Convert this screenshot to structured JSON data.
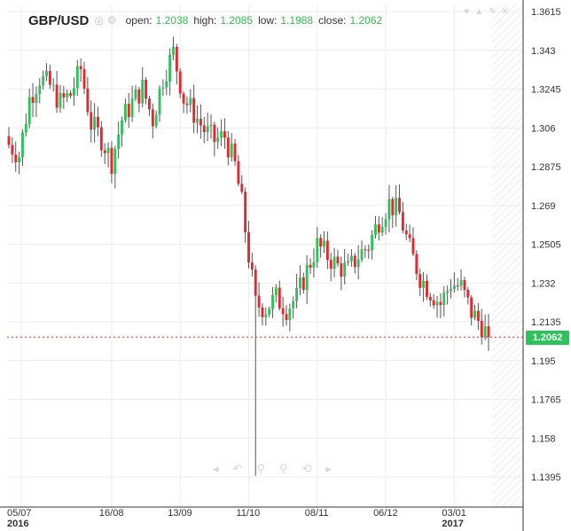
{
  "header": {
    "symbol": "GBP/USD",
    "open_label": "open:",
    "open_value": "1.2038",
    "high_label": "high:",
    "high_value": "1.2085",
    "low_label": "low:",
    "low_value": "1.1988",
    "close_label": "close:",
    "close_value": "1.2062",
    "icons": [
      "eye-icon",
      "settings-icon"
    ]
  },
  "toolbar_icons": [
    "heart-icon",
    "share-icon",
    "edit-icon",
    "close-icon"
  ],
  "nav_icons": [
    "arrow-left-icon",
    "undo-icon",
    "zoom-out-icon",
    "zoom-in-icon",
    "reset-icon",
    "arrow-right-icon"
  ],
  "colors": {
    "up": "#2ec35a",
    "down": "#e8262c",
    "grid": "#ececec",
    "last_line": "#e8262c",
    "last_badge": "#2ec35a"
  },
  "chart_data": {
    "type": "candlestick",
    "title": "GBP/USD",
    "xlabel": "",
    "ylabel": "",
    "ylim": [
      1.13,
      1.365
    ],
    "y_ticks": [
      "1.3615",
      "1.343",
      "1.3245",
      "1.306",
      "1.2875",
      "1.269",
      "1.2505",
      "1.232",
      "1.2135",
      "1.195",
      "1.1765",
      "1.158",
      "1.1395"
    ],
    "x_ticks": [
      {
        "label": "05/07",
        "sub": "2016",
        "index": 0
      },
      {
        "label": "16/08",
        "sub": "",
        "index": 30
      },
      {
        "label": "13/09",
        "sub": "",
        "index": 50
      },
      {
        "label": "11/10",
        "sub": "",
        "index": 70
      },
      {
        "label": "08/11",
        "sub": "",
        "index": 90
      },
      {
        "label": "06/12",
        "sub": "",
        "index": 110
      },
      {
        "label": "03/01",
        "sub": "2017",
        "index": 130
      }
    ],
    "last_close": "1.2062",
    "last_value": 1.2062,
    "candle_count": 141,
    "key_points": [
      [
        0,
        1.298
      ],
      [
        3,
        1.293
      ],
      [
        6,
        1.32
      ],
      [
        9,
        1.33
      ],
      [
        12,
        1.326
      ],
      [
        15,
        1.318
      ],
      [
        18,
        1.322
      ],
      [
        21,
        1.334
      ],
      [
        24,
        1.308
      ],
      [
        27,
        1.301
      ],
      [
        30,
        1.29
      ],
      [
        33,
        1.31
      ],
      [
        36,
        1.318
      ],
      [
        39,
        1.325
      ],
      [
        42,
        1.31
      ],
      [
        45,
        1.33
      ],
      [
        48,
        1.342
      ],
      [
        51,
        1.32
      ],
      [
        54,
        1.313
      ],
      [
        57,
        1.305
      ],
      [
        60,
        1.3
      ],
      [
        63,
        1.302
      ],
      [
        66,
        1.288
      ],
      [
        68,
        1.27
      ],
      [
        70,
        1.245
      ],
      [
        72,
        1.222
      ],
      [
        75,
        1.22
      ],
      [
        78,
        1.225
      ],
      [
        81,
        1.22
      ],
      [
        84,
        1.225
      ],
      [
        87,
        1.238
      ],
      [
        90,
        1.25
      ],
      [
        93,
        1.245
      ],
      [
        96,
        1.24
      ],
      [
        99,
        1.238
      ],
      [
        102,
        1.245
      ],
      [
        105,
        1.25
      ],
      [
        108,
        1.262
      ],
      [
        111,
        1.27
      ],
      [
        114,
        1.265
      ],
      [
        117,
        1.248
      ],
      [
        120,
        1.235
      ],
      [
        123,
        1.228
      ],
      [
        126,
        1.222
      ],
      [
        129,
        1.232
      ],
      [
        132,
        1.23
      ],
      [
        135,
        1.218
      ],
      [
        138,
        1.212
      ],
      [
        140,
        1.206
      ]
    ],
    "spike_low": {
      "index": 72,
      "value": 1.14
    },
    "grid": true,
    "legend": "none"
  }
}
